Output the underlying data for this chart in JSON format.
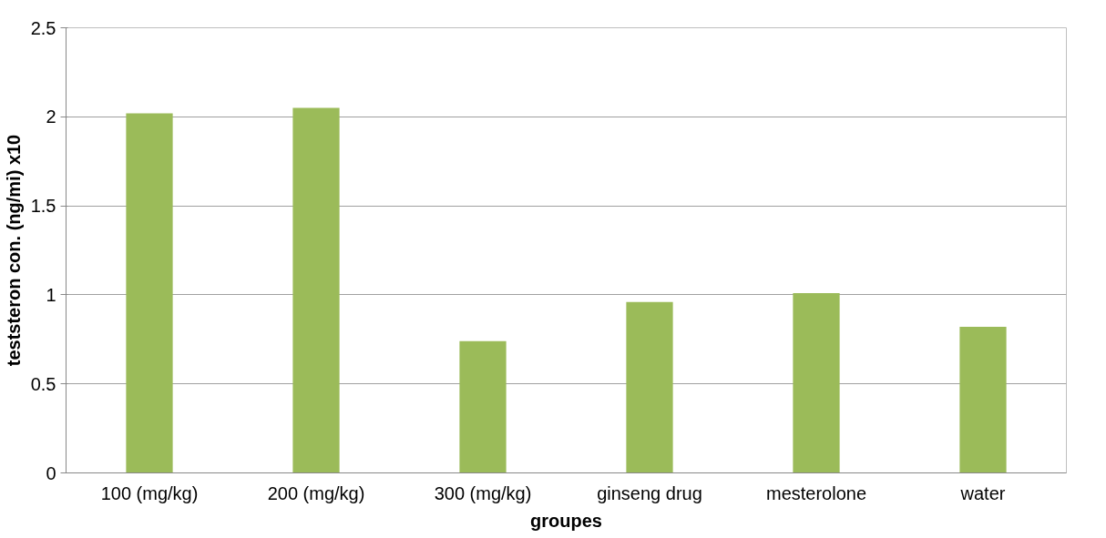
{
  "chart_data": {
    "type": "bar",
    "xlabel": "groupes",
    "ylabel": "teststeron con. (ng/mi) x10",
    "categories": [
      "100 (mg/kg)",
      "200 (mg/kg)",
      "300 (mg/kg)",
      "ginseng drug",
      "mesterolone",
      "water"
    ],
    "values": [
      2.02,
      2.05,
      0.74,
      0.96,
      1.01,
      0.82
    ],
    "color": "#9bbb59",
    "ylim": [
      0,
      2.5
    ],
    "yticks": [
      0,
      0.5,
      1,
      1.5,
      2,
      2.5
    ],
    "grid": "y"
  }
}
